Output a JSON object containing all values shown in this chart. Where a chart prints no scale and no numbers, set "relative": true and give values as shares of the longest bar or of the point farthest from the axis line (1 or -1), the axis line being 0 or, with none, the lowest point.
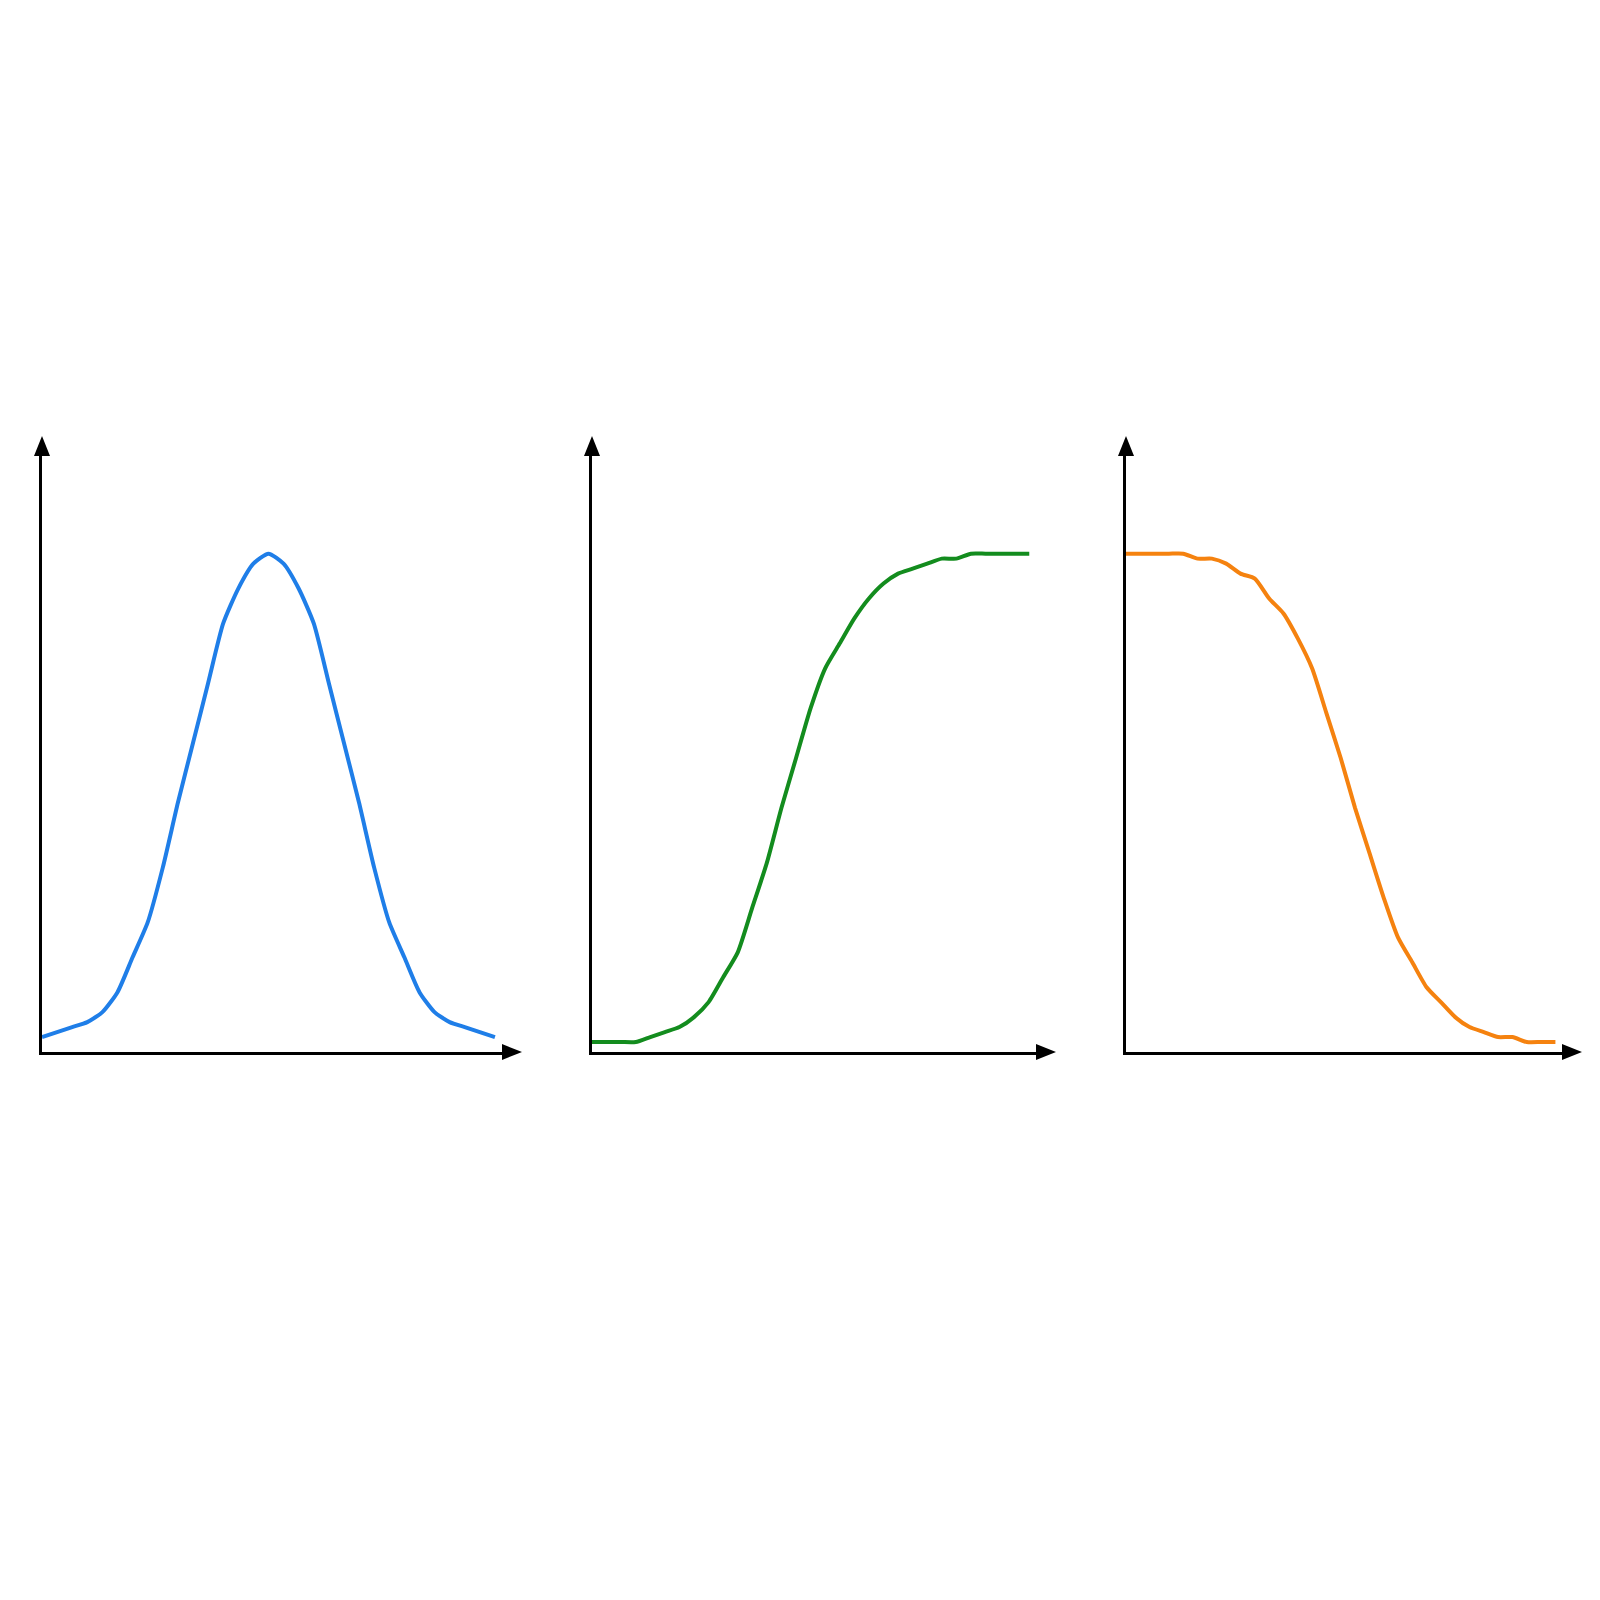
{
  "chart_data": [
    {
      "type": "line",
      "relative": true,
      "categories": [
        null,
        null,
        null,
        null,
        null,
        null,
        null,
        null,
        null,
        null,
        null,
        null,
        null,
        null,
        null,
        null,
        null,
        null,
        null,
        null,
        null,
        null,
        null,
        null,
        null,
        null,
        null,
        null,
        null,
        null,
        null
      ],
      "series": [
        {
          "color": "#1f7ee8",
          "values": [
            0.03,
            0.04,
            0.05,
            0.06,
            0.08,
            0.12,
            0.19,
            0.26,
            0.37,
            0.5,
            0.62,
            0.74,
            0.86,
            0.93,
            0.98,
            1,
            0.98,
            0.93,
            0.86,
            0.74,
            0.62,
            0.5,
            0.37,
            0.26,
            0.19,
            0.12,
            0.08,
            0.06,
            0.05,
            0.04,
            0.03
          ]
        }
      ]
    },
    {
      "type": "line",
      "relative": true,
      "categories": [
        null,
        null,
        null,
        null,
        null,
        null,
        null,
        null,
        null,
        null,
        null,
        null,
        null,
        null,
        null,
        null,
        null,
        null,
        null,
        null,
        null,
        null,
        null,
        null,
        null,
        null,
        null,
        null,
        null,
        null,
        null
      ],
      "series": [
        {
          "color": "#138c1e",
          "values": [
            0.02,
            0.02,
            0.02,
            0.02,
            0.03,
            0.04,
            0.05,
            0.07,
            0.1,
            0.15,
            0.2,
            0.29,
            0.38,
            0.49,
            0.59,
            0.69,
            0.77,
            0.82,
            0.87,
            0.91,
            0.94,
            0.96,
            0.97,
            0.98,
            0.99,
            0.99,
            1,
            1,
            1,
            1,
            1
          ]
        }
      ]
    },
    {
      "type": "line",
      "relative": true,
      "categories": [
        null,
        null,
        null,
        null,
        null,
        null,
        null,
        null,
        null,
        null,
        null,
        null,
        null,
        null,
        null,
        null,
        null,
        null,
        null,
        null,
        null,
        null,
        null,
        null,
        null,
        null,
        null,
        null,
        null,
        null,
        null
      ],
      "series": [
        {
          "color": "#f5820f",
          "values": [
            1,
            1,
            1,
            1,
            1,
            0.99,
            0.99,
            0.98,
            0.96,
            0.95,
            0.91,
            0.88,
            0.83,
            0.77,
            0.68,
            0.59,
            0.49,
            0.4,
            0.31,
            0.23,
            0.18,
            0.13,
            0.1,
            0.07,
            0.05,
            0.04,
            0.03,
            0.03,
            0.02,
            0.02,
            0.02
          ]
        }
      ]
    }
  ]
}
